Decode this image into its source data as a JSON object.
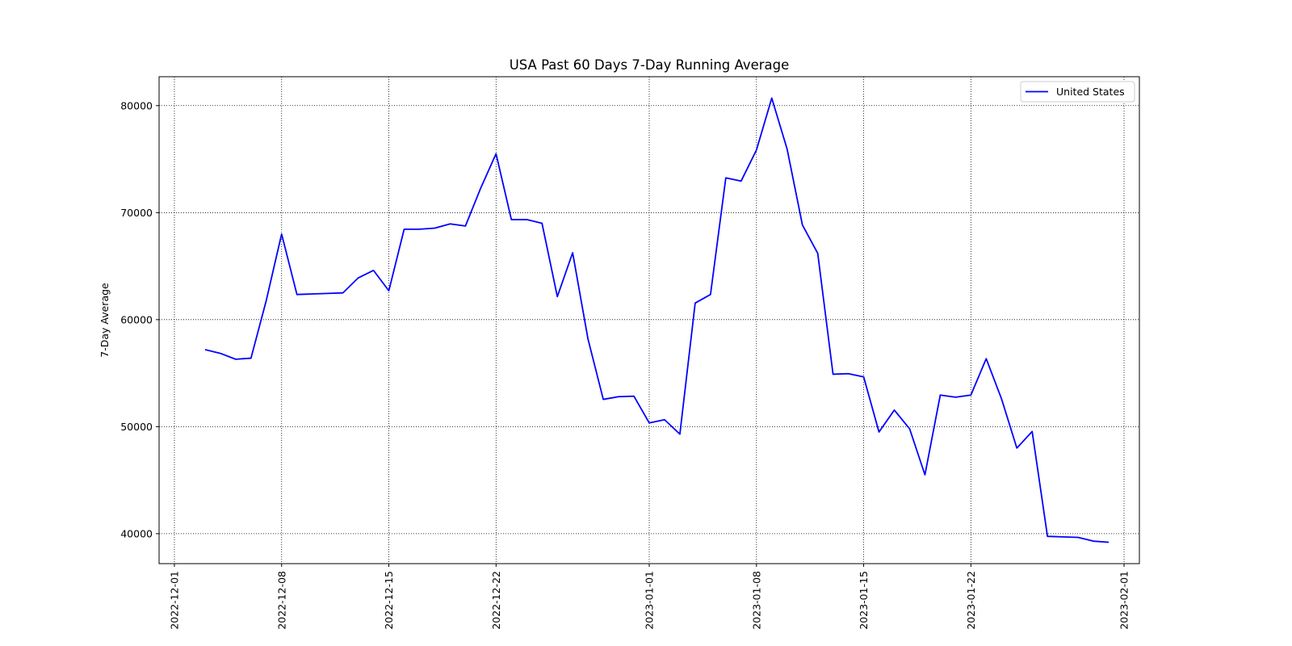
{
  "chart_data": {
    "type": "line",
    "title": "USA Past 60 Days 7-Day Running Average",
    "xlabel": "",
    "ylabel": "7-Day Average",
    "x_tick_labels": [
      "2022-12-01",
      "2022-12-08",
      "2022-12-15",
      "2022-12-22",
      "2023-01-01",
      "2023-01-08",
      "2023-01-15",
      "2023-01-22",
      "2023-02-01"
    ],
    "y_tick_labels": [
      "40000",
      "50000",
      "60000",
      "70000",
      "80000"
    ],
    "y_ticks": [
      40000,
      50000,
      60000,
      70000,
      80000
    ],
    "xlim": [
      "2022-11-30",
      "2023-02-02"
    ],
    "ylim": [
      37200,
      82700
    ],
    "grid": true,
    "grid_style": "dotted",
    "legend_position": "upper-right",
    "series": [
      {
        "name": "United States",
        "color": "#0000ff",
        "x": [
          "2022-12-03",
          "2022-12-04",
          "2022-12-05",
          "2022-12-06",
          "2022-12-07",
          "2022-12-08",
          "2022-12-09",
          "2022-12-10",
          "2022-12-11",
          "2022-12-12",
          "2022-12-13",
          "2022-12-14",
          "2022-12-15",
          "2022-12-16",
          "2022-12-17",
          "2022-12-18",
          "2022-12-19",
          "2022-12-20",
          "2022-12-21",
          "2022-12-22",
          "2022-12-23",
          "2022-12-24",
          "2022-12-25",
          "2022-12-26",
          "2022-12-27",
          "2022-12-28",
          "2022-12-29",
          "2022-12-30",
          "2022-12-31",
          "2023-01-01",
          "2023-01-02",
          "2023-01-03",
          "2023-01-04",
          "2023-01-05",
          "2023-01-06",
          "2023-01-07",
          "2023-01-08",
          "2023-01-09",
          "2023-01-10",
          "2023-01-11",
          "2023-01-12",
          "2023-01-13",
          "2023-01-14",
          "2023-01-15",
          "2023-01-16",
          "2023-01-17",
          "2023-01-18",
          "2023-01-19",
          "2023-01-20",
          "2023-01-21",
          "2023-01-22",
          "2023-01-23",
          "2023-01-24",
          "2023-01-25",
          "2023-01-26",
          "2023-01-27",
          "2023-01-28",
          "2023-01-29",
          "2023-01-30",
          "2023-01-31"
        ],
        "values": [
          57200,
          56850,
          56300,
          56400,
          61800,
          68000,
          62350,
          62400,
          62450,
          62500,
          63900,
          64600,
          62700,
          68450,
          68450,
          68550,
          68950,
          68750,
          72300,
          75500,
          69350,
          69350,
          69000,
          62150,
          66250,
          58200,
          52550,
          52800,
          52850,
          50350,
          50650,
          49300,
          61550,
          62350,
          73250,
          72950,
          75850,
          80700,
          75950,
          68850,
          66200,
          54900,
          54950,
          54650,
          49500,
          51550,
          49800,
          45500,
          52950,
          52750,
          52950,
          56350,
          52600,
          48000,
          49550,
          39750,
          39700,
          39650,
          39300,
          39200
        ]
      }
    ]
  }
}
